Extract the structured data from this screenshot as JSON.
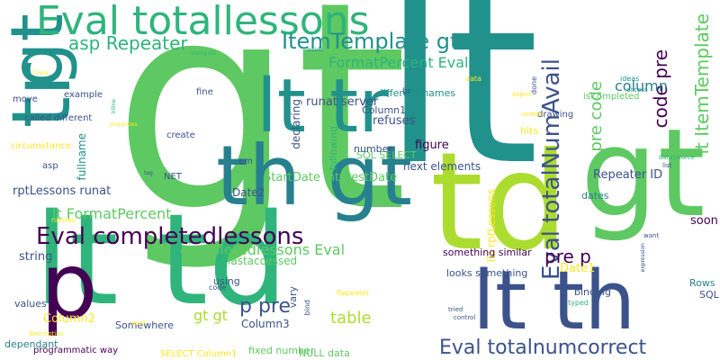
{
  "word_cloud": {
    "background": "#ffffff",
    "palette": [
      "#440154",
      "#3b528b",
      "#21918c",
      "#5ec962",
      "#fde725",
      "#2fb47c",
      "#addc30",
      "#27808e"
    ],
    "words": [
      {
        "text": "gt",
        "color": "#5ec962"
      },
      {
        "text": "lt",
        "color": "#21918c"
      },
      {
        "text": "td",
        "color": "#addc30"
      },
      {
        "text": "lt td",
        "color": "#2fb47c"
      },
      {
        "text": "gt",
        "color": "#5ec962"
      },
      {
        "text": "th gt",
        "color": "#27808e"
      },
      {
        "text": "lt tr",
        "color": "#21918c"
      },
      {
        "text": "p",
        "color": "#440154"
      },
      {
        "text": "lt th",
        "color": "#3b528b"
      },
      {
        "text": "tr",
        "color": "#21918c"
      },
      {
        "text": "gt",
        "color": "#21918c"
      },
      {
        "text": "Eval totallessons",
        "color": "#2fb47c"
      },
      {
        "text": "Eval completedlessons",
        "color": "#440154"
      },
      {
        "text": "Eval totalNumAvail",
        "color": "#3b528b"
      },
      {
        "text": "Eval totalnumcorrect",
        "color": "#3b528b"
      },
      {
        "text": "ItemTemplate gt",
        "color": "#21918c"
      },
      {
        "text": "asp Repeater",
        "color": "#2fb47c"
      },
      {
        "text": "lt ItemTemplate",
        "color": "#5ec962"
      },
      {
        "text": "code pre",
        "color": "#440154"
      },
      {
        "text": "pre code",
        "color": "#5ec962"
      },
      {
        "text": "pre p",
        "color": "#440154"
      },
      {
        "text": "p pre",
        "color": "#3b528b"
      },
      {
        "text": "column",
        "color": "#27808e"
      },
      {
        "text": "FormatPercent Eval",
        "color": "#2fb47c"
      },
      {
        "text": "lt FormatPercent",
        "color": "#5ec962"
      },
      {
        "text": "completedlessons Eval",
        "color": "#5ec962"
      },
      {
        "text": "table",
        "color": "#addc30"
      },
      {
        "text": "gt gt",
        "color": "#addc30"
      },
      {
        "text": "runat server",
        "color": "#3b528b"
      },
      {
        "text": "Column1",
        "color": "#3b528b"
      },
      {
        "text": "different names",
        "color": "#21918c"
      },
      {
        "text": "refuses",
        "color": "#3b528b"
      },
      {
        "text": "figure",
        "color": "#440154"
      },
      {
        "text": "following",
        "color": "#2fb47c"
      },
      {
        "text": "declaring",
        "color": "#3b528b"
      },
      {
        "text": "fullname",
        "color": "#21918c"
      },
      {
        "text": "rptLessons runat",
        "color": "#3b528b"
      },
      {
        "text": "StartDate InterestDate",
        "color": "#5ec962"
      },
      {
        "text": "next elements",
        "color": "#3b528b"
      },
      {
        "text": "SQL SELECT",
        "color": "#5ec962"
      },
      {
        "text": "number",
        "color": "#3b528b"
      },
      {
        "text": "ID rptLessons",
        "color": "#fde725"
      },
      {
        "text": "Repeater ID",
        "color": "#3b528b"
      },
      {
        "text": "Date2",
        "color": "#3b528b"
      },
      {
        "text": "dates",
        "color": "#27808e"
      },
      {
        "text": "soon",
        "color": "#440154"
      },
      {
        "text": "Column2",
        "color": "#fde725"
      },
      {
        "text": "Column3",
        "color": "#3b528b"
      },
      {
        "text": "string",
        "color": "#3b528b"
      },
      {
        "text": "lastaccessed",
        "color": "#5ec962"
      },
      {
        "text": "something similar",
        "color": "#440154"
      },
      {
        "text": "looks something",
        "color": "#3b528b"
      },
      {
        "text": "Date1",
        "color": "#fde725"
      },
      {
        "text": "typed",
        "color": "#2fb47c"
      },
      {
        "text": "binding",
        "color": "#3b528b"
      },
      {
        "text": "Rows",
        "color": "#27808e"
      },
      {
        "text": "SQL",
        "color": "#3b528b"
      },
      {
        "text": "values",
        "color": "#3b528b"
      },
      {
        "text": "Somewhere",
        "color": "#3b528b"
      },
      {
        "text": "using",
        "color": "#3b528b"
      },
      {
        "text": "vary",
        "color": "#3b528b"
      },
      {
        "text": "NULL data",
        "color": "#5ec962"
      },
      {
        "text": "fixed number",
        "color": "#5ec962"
      },
      {
        "text": "SELECT Column1",
        "color": "#fde725"
      },
      {
        "text": "programmatic way",
        "color": "#440154"
      },
      {
        "text": "dependant",
        "color": "#27808e"
      },
      {
        "text": "called different",
        "color": "#3b528b"
      },
      {
        "text": "circumstance",
        "color": "#fde725"
      },
      {
        "text": "asp",
        "color": "#3b528b"
      },
      {
        "text": "NET",
        "color": "#3b528b"
      },
      {
        "text": "em",
        "color": "#3b528b"
      },
      {
        "text": "create",
        "color": "#3b528b"
      },
      {
        "text": "fine",
        "color": "#3b528b"
      },
      {
        "text": "example",
        "color": "#3b528b"
      },
      {
        "text": "move",
        "color": "#3b528b"
      },
      {
        "text": "drawing",
        "color": "#3b528b"
      },
      {
        "text": "isCompleted",
        "color": "#5ec962"
      },
      {
        "text": "hits",
        "color": "#fde725"
      },
      {
        "text": "done",
        "color": "#3b528b"
      },
      {
        "text": "data",
        "color": "#fde725"
      },
      {
        "text": "br",
        "color": "#3b528b"
      },
      {
        "text": "ideas",
        "color": "#21918c"
      },
      {
        "text": "access",
        "color": "#21918c"
      },
      {
        "text": "object",
        "color": "#fde725"
      },
      {
        "text": "setted",
        "color": "#fde725"
      },
      {
        "text": "list",
        "color": "#3b528b"
      },
      {
        "text": "dataSource",
        "color": "#2fb47c"
      },
      {
        "text": "want",
        "color": "#3b528b"
      },
      {
        "text": "expression",
        "color": "#3b528b"
      },
      {
        "text": "tried",
        "color": "#3b528b"
      },
      {
        "text": "control",
        "color": "#3b528b"
      },
      {
        "text": "Repeater",
        "color": "#fde725"
      },
      {
        "text": "code",
        "color": "#3b528b"
      },
      {
        "text": "bind",
        "color": "#3b528b"
      },
      {
        "text": "work",
        "color": "#fde725"
      },
      {
        "text": "description",
        "color": "#fde725"
      },
      {
        "text": "inline",
        "color": "#2fb47c"
      },
      {
        "text": "Thank",
        "color": "#fde725"
      },
      {
        "text": "elements",
        "color": "#2fb47c"
      },
      {
        "text": "inside",
        "color": "#21918c"
      },
      {
        "text": "properties",
        "color": "#fde725"
      },
      {
        "text": "names",
        "color": "#fde725"
      },
      {
        "text": "tag",
        "color": "#3b528b"
      }
    ]
  }
}
